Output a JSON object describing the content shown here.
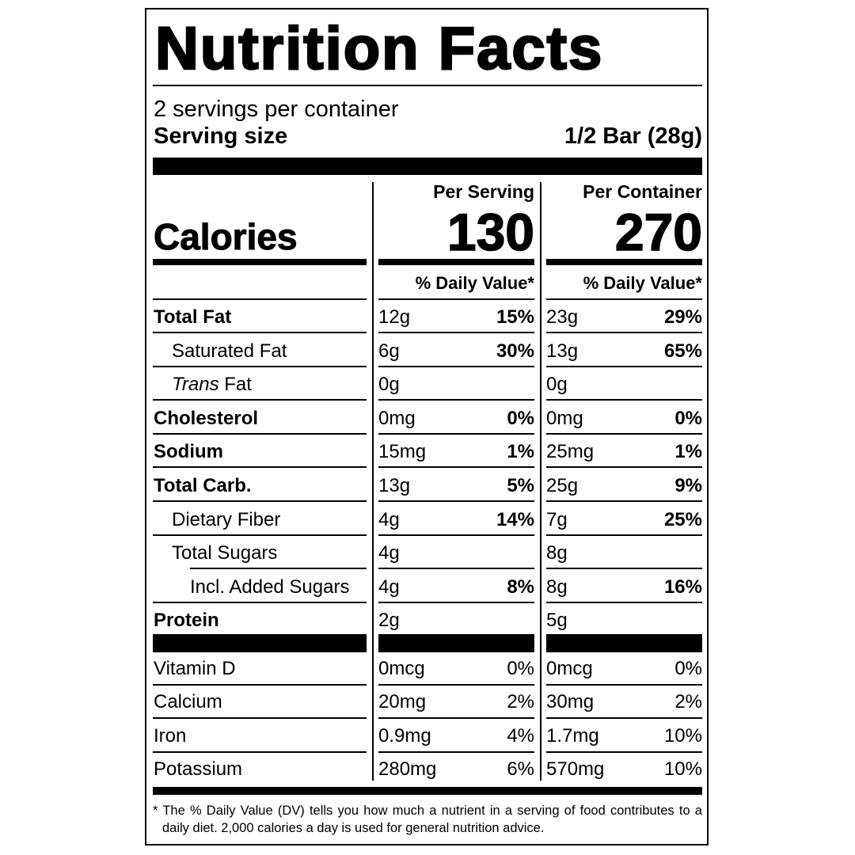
{
  "title": "Nutrition Facts",
  "servings_per_container": "2 servings per container",
  "serving_size": {
    "label": "Serving size",
    "value": "1/2 Bar (28g)"
  },
  "calories_label": "Calories",
  "columns": [
    {
      "header": "Per Serving",
      "calories": 130,
      "dv_header": "% Daily Value*"
    },
    {
      "header": "Per Container",
      "calories": 270,
      "dv_header": "% Daily Value*"
    }
  ],
  "nutrients": [
    {
      "name": "Total Fat",
      "bold": true,
      "indent": 0,
      "values": [
        {
          "amount": "12g",
          "dv": "15%"
        },
        {
          "amount": "23g",
          "dv": "29%"
        }
      ]
    },
    {
      "name": "Saturated Fat",
      "indent": 1,
      "values": [
        {
          "amount": "6g",
          "dv": "30%"
        },
        {
          "amount": "13g",
          "dv": "65%"
        }
      ]
    },
    {
      "italic_prefix": "Trans",
      "name": "Fat",
      "indent": 1,
      "values": [
        {
          "amount": "0g"
        },
        {
          "amount": "0g"
        }
      ]
    },
    {
      "name": "Cholesterol",
      "bold": true,
      "indent": 0,
      "values": [
        {
          "amount": "0mg",
          "dv": "0%"
        },
        {
          "amount": "0mg",
          "dv": "0%"
        }
      ]
    },
    {
      "name": "Sodium",
      "bold": true,
      "indent": 0,
      "values": [
        {
          "amount": "15mg",
          "dv": "1%"
        },
        {
          "amount": "25mg",
          "dv": "1%"
        }
      ]
    },
    {
      "name": "Total Carb.",
      "bold": true,
      "indent": 0,
      "values": [
        {
          "amount": "13g",
          "dv": "5%"
        },
        {
          "amount": "25g",
          "dv": "9%"
        }
      ]
    },
    {
      "name": "Dietary Fiber",
      "indent": 1,
      "values": [
        {
          "amount": "4g",
          "dv": "14%"
        },
        {
          "amount": "7g",
          "dv": "25%"
        }
      ]
    },
    {
      "name": "Total Sugars",
      "indent": 1,
      "values": [
        {
          "amount": "4g"
        },
        {
          "amount": "8g"
        }
      ]
    },
    {
      "name": "Incl. Added Sugars",
      "indent": 2,
      "values": [
        {
          "amount": "4g",
          "dv": "8%"
        },
        {
          "amount": "8g",
          "dv": "16%"
        }
      ]
    },
    {
      "name": "Protein",
      "bold": true,
      "indent": 0,
      "values": [
        {
          "amount": "2g"
        },
        {
          "amount": "5g"
        }
      ]
    }
  ],
  "vitamins": [
    {
      "name": "Vitamin D",
      "values": [
        {
          "amount": "0mcg",
          "dv": "0%"
        },
        {
          "amount": "0mcg",
          "dv": "0%"
        }
      ]
    },
    {
      "name": "Calcium",
      "values": [
        {
          "amount": "20mg",
          "dv": "2%"
        },
        {
          "amount": "30mg",
          "dv": "2%"
        }
      ]
    },
    {
      "name": "Iron",
      "values": [
        {
          "amount": "0.9mg",
          "dv": "4%"
        },
        {
          "amount": "1.7mg",
          "dv": "10%"
        }
      ]
    },
    {
      "name": "Potassium",
      "values": [
        {
          "amount": "280mg",
          "dv": "6%"
        },
        {
          "amount": "570mg",
          "dv": "10%"
        }
      ]
    }
  ],
  "footnote": "* The % Daily Value (DV) tells you how much a nutrient in a serving of food contributes to a daily diet. 2,000 calories a day is used for general nutrition advice."
}
